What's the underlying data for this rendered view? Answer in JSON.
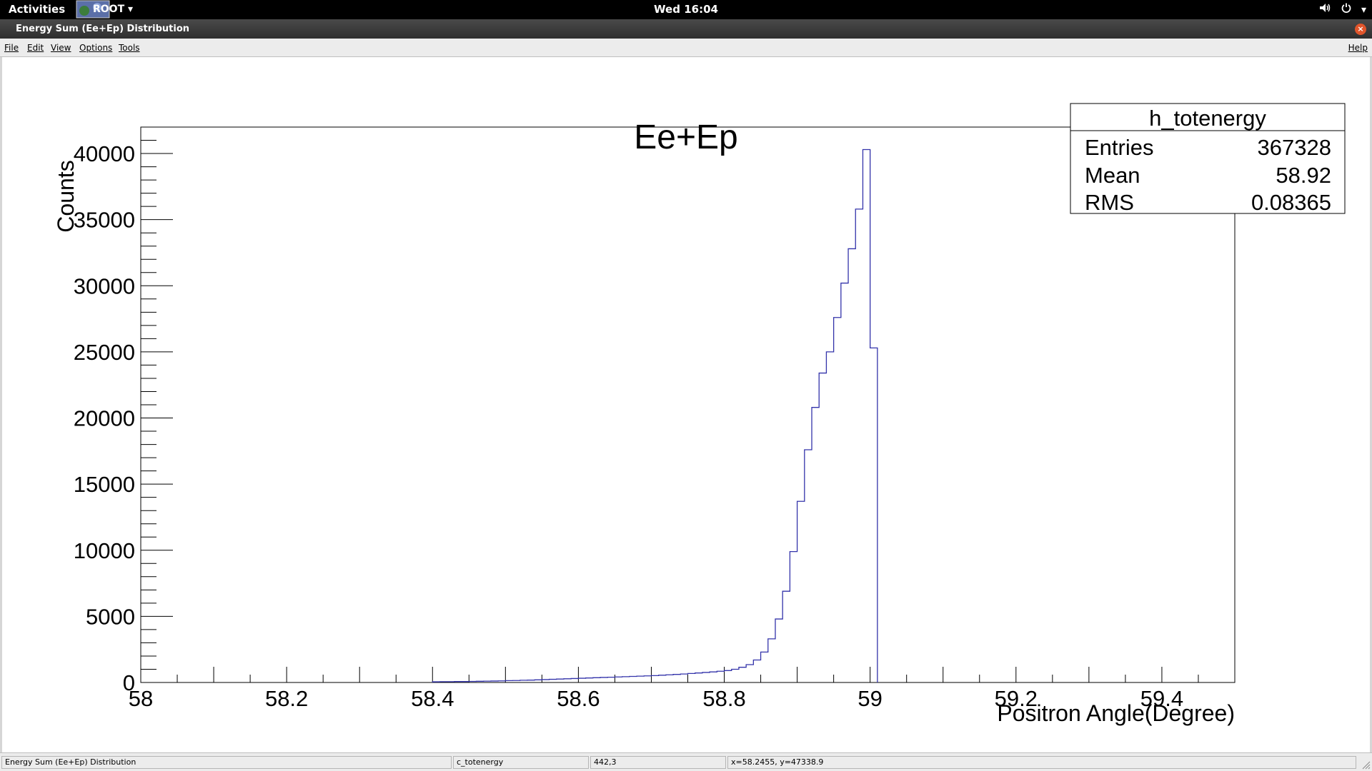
{
  "topbar": {
    "activities": "Activities",
    "app_name": "ROOT ▾",
    "clock": "Wed 16:04",
    "volume_icon": "volume-icon",
    "power_icon": "power-icon",
    "tray_arrow": "▾"
  },
  "window": {
    "title": "Energy Sum (Ee+Ep) Distribution",
    "close": "×"
  },
  "menu": {
    "file": "File",
    "edit": "Edit",
    "view": "View",
    "options": "Options",
    "tools": "Tools",
    "help": "Help"
  },
  "colors": {
    "histogram_line": "#3333aa",
    "axis": "#000000",
    "background": "#ffffff"
  },
  "stats_box": {
    "name": "h_totenergy",
    "rows": [
      {
        "label": "Entries",
        "value": "367328"
      },
      {
        "label": "Mean",
        "value": "58.92"
      },
      {
        "label": "RMS",
        "value": "0.08365"
      }
    ]
  },
  "chart_data": {
    "type": "histogram",
    "title": "Ee+Ep",
    "xlabel": "Positron Angle(Degree)",
    "ylabel": "Counts",
    "xlim": [
      58,
      59.5
    ],
    "ylim": [
      0,
      42000
    ],
    "x_ticks": [
      "58",
      "58.2",
      "58.4",
      "58.6",
      "58.8",
      "59",
      "59.2",
      "59.4"
    ],
    "y_ticks": [
      "0",
      "5000",
      "10000",
      "15000",
      "20000",
      "25000",
      "30000",
      "35000",
      "40000"
    ],
    "bin_width": 0.01,
    "series": [
      {
        "values": [
          {
            "x": 58.4,
            "y": 50
          },
          {
            "x": 58.41,
            "y": 60
          },
          {
            "x": 58.42,
            "y": 60
          },
          {
            "x": 58.43,
            "y": 70
          },
          {
            "x": 58.44,
            "y": 70
          },
          {
            "x": 58.45,
            "y": 80
          },
          {
            "x": 58.46,
            "y": 90
          },
          {
            "x": 58.47,
            "y": 100
          },
          {
            "x": 58.48,
            "y": 110
          },
          {
            "x": 58.49,
            "y": 120
          },
          {
            "x": 58.5,
            "y": 140
          },
          {
            "x": 58.51,
            "y": 150
          },
          {
            "x": 58.52,
            "y": 170
          },
          {
            "x": 58.53,
            "y": 180
          },
          {
            "x": 58.54,
            "y": 200
          },
          {
            "x": 58.55,
            "y": 220
          },
          {
            "x": 58.56,
            "y": 240
          },
          {
            "x": 58.57,
            "y": 260
          },
          {
            "x": 58.58,
            "y": 280
          },
          {
            "x": 58.59,
            "y": 300
          },
          {
            "x": 58.6,
            "y": 320
          },
          {
            "x": 58.61,
            "y": 340
          },
          {
            "x": 58.62,
            "y": 360
          },
          {
            "x": 58.63,
            "y": 380
          },
          {
            "x": 58.64,
            "y": 400
          },
          {
            "x": 58.65,
            "y": 420
          },
          {
            "x": 58.66,
            "y": 440
          },
          {
            "x": 58.67,
            "y": 460
          },
          {
            "x": 58.68,
            "y": 480
          },
          {
            "x": 58.69,
            "y": 500
          },
          {
            "x": 58.7,
            "y": 520
          },
          {
            "x": 58.71,
            "y": 550
          },
          {
            "x": 58.72,
            "y": 580
          },
          {
            "x": 58.73,
            "y": 610
          },
          {
            "x": 58.74,
            "y": 640
          },
          {
            "x": 58.75,
            "y": 680
          },
          {
            "x": 58.76,
            "y": 720
          },
          {
            "x": 58.77,
            "y": 760
          },
          {
            "x": 58.78,
            "y": 800
          },
          {
            "x": 58.79,
            "y": 850
          },
          {
            "x": 58.8,
            "y": 900
          },
          {
            "x": 58.81,
            "y": 1000
          },
          {
            "x": 58.82,
            "y": 1150
          },
          {
            "x": 58.83,
            "y": 1350
          },
          {
            "x": 58.84,
            "y": 1700
          },
          {
            "x": 58.85,
            "y": 2300
          },
          {
            "x": 58.86,
            "y": 3300
          },
          {
            "x": 58.87,
            "y": 4800
          },
          {
            "x": 58.88,
            "y": 6900
          },
          {
            "x": 58.89,
            "y": 9900
          },
          {
            "x": 58.9,
            "y": 13700
          },
          {
            "x": 58.91,
            "y": 17600
          },
          {
            "x": 58.92,
            "y": 20800
          },
          {
            "x": 58.93,
            "y": 23400
          },
          {
            "x": 58.94,
            "y": 25000
          },
          {
            "x": 58.95,
            "y": 27600
          },
          {
            "x": 58.96,
            "y": 30200
          },
          {
            "x": 58.97,
            "y": 32800
          },
          {
            "x": 58.98,
            "y": 35800
          },
          {
            "x": 58.99,
            "y": 40300
          },
          {
            "x": 59.0,
            "y": 25300
          }
        ]
      }
    ],
    "grid": false,
    "legend": "none"
  },
  "status": {
    "cell1": "Energy Sum (Ee+Ep) Distribution",
    "cell2": "c_totenergy",
    "cell3": "442,3",
    "cell4": "x=58.2455, y=47338.9"
  }
}
